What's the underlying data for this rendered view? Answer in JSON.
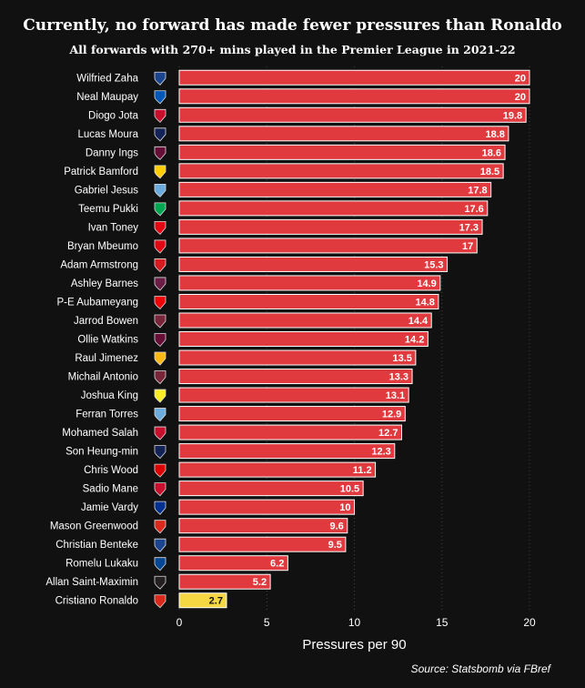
{
  "chart_data": {
    "type": "bar",
    "orientation": "horizontal",
    "title": "Currently, no forward has made fewer pressures than Ronaldo",
    "subtitle": "All forwards with 270+ mins played in the Premier League in 2021-22",
    "xlabel": "Pressures per 90",
    "xlim": [
      0,
      20
    ],
    "xticks": [
      0,
      5,
      10,
      15,
      20
    ],
    "grid": true,
    "source": "Source: Statsbomb via FBref",
    "bar_color": "#e03a3e",
    "highlight_color": "#f5d743",
    "categories": [
      "Wilfried Zaha",
      "Neal Maupay",
      "Diogo Jota",
      "Lucas Moura",
      "Danny Ings",
      "Patrick Bamford",
      "Gabriel Jesus",
      "Teemu Pukki",
      "Ivan Toney",
      "Bryan Mbeumo",
      "Adam Armstrong",
      "Ashley Barnes",
      "P-E Aubameyang",
      "Jarrod Bowen",
      "Ollie Watkins",
      "Raul Jimenez",
      "Michail Antonio",
      "Joshua King",
      "Ferran Torres",
      "Mohamed Salah",
      "Son Heung-min",
      "Chris Wood",
      "Sadio Mane",
      "Jamie Vardy",
      "Mason Greenwood",
      "Christian Benteke",
      "Romelu Lukaku",
      "Allan Saint-Maximin",
      "Cristiano Ronaldo"
    ],
    "values": [
      20,
      20,
      19.8,
      18.8,
      18.6,
      18.5,
      17.8,
      17.6,
      17.3,
      17,
      15.3,
      14.9,
      14.8,
      14.4,
      14.2,
      13.5,
      13.3,
      13.1,
      12.9,
      12.7,
      12.3,
      11.2,
      10.5,
      10,
      9.6,
      9.5,
      6.2,
      5.2,
      2.7
    ],
    "value_labels": [
      "20",
      "20",
      "19.8",
      "18.8",
      "18.6",
      "18.5",
      "17.8",
      "17.6",
      "17.3",
      "17",
      "15.3",
      "14.9",
      "14.8",
      "14.4",
      "14.2",
      "13.5",
      "13.3",
      "13.1",
      "12.9",
      "12.7",
      "12.3",
      "11.2",
      "10.5",
      "10",
      "9.6",
      "9.5",
      "6.2",
      "5.2",
      "2.7"
    ],
    "team_badge_colors": [
      "#1b458f",
      "#0057b8",
      "#c8102e",
      "#132257",
      "#670e36",
      "#ffcd00",
      "#6cabdd",
      "#00a650",
      "#e30613",
      "#e30613",
      "#d71920",
      "#6c1d45",
      "#ef0107",
      "#7a263a",
      "#670e36",
      "#fdb913",
      "#7a263a",
      "#fbee23",
      "#6cabdd",
      "#c8102e",
      "#132257",
      "#dd0000",
      "#c8102e",
      "#003090",
      "#da291c",
      "#1b458f",
      "#034694",
      "#241f20",
      "#da291c"
    ],
    "highlight_index": 28
  }
}
